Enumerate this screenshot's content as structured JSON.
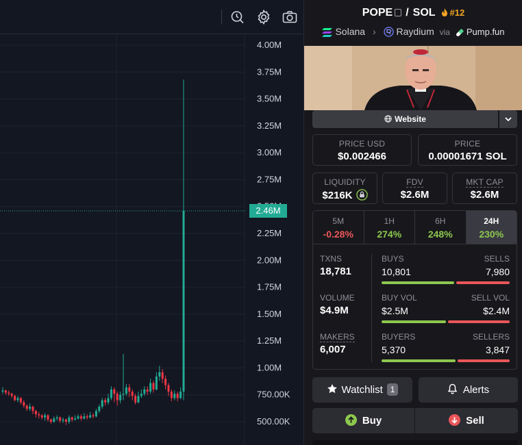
{
  "chart": {
    "y_axis_labels": [
      "4.00M",
      "3.75M",
      "3.50M",
      "3.25M",
      "3.00M",
      "2.75M",
      "2.50M",
      "2.25M",
      "2.00M",
      "1.75M",
      "1.50M",
      "1.25M",
      "1.00M",
      "750.00K",
      "500.00K"
    ],
    "y_axis_values": [
      4000000,
      3750000,
      3500000,
      3250000,
      3000000,
      2750000,
      2500000,
      2250000,
      2000000,
      1750000,
      1500000,
      1250000,
      1000000,
      750000,
      500000
    ],
    "current_price_label": "2.46M",
    "current_price_value": 2460000,
    "up_color": "#22ab94",
    "down_color": "#f23645",
    "candles": [
      [
        780000,
        790000,
        820000,
        760000
      ],
      [
        790000,
        770000,
        800000,
        750000
      ],
      [
        770000,
        760000,
        790000,
        740000
      ],
      [
        760000,
        740000,
        770000,
        720000
      ],
      [
        740000,
        700000,
        750000,
        690000
      ],
      [
        700000,
        720000,
        740000,
        680000
      ],
      [
        720000,
        680000,
        730000,
        660000
      ],
      [
        680000,
        650000,
        700000,
        630000
      ],
      [
        650000,
        620000,
        660000,
        600000
      ],
      [
        620000,
        640000,
        670000,
        600000
      ],
      [
        640000,
        600000,
        650000,
        570000
      ],
      [
        600000,
        570000,
        610000,
        540000
      ],
      [
        570000,
        560000,
        590000,
        530000
      ],
      [
        560000,
        540000,
        570000,
        520000
      ],
      [
        540000,
        560000,
        580000,
        510000
      ],
      [
        560000,
        520000,
        570000,
        500000
      ],
      [
        520000,
        500000,
        530000,
        480000
      ],
      [
        500000,
        530000,
        550000,
        490000
      ],
      [
        530000,
        540000,
        560000,
        510000
      ],
      [
        540000,
        510000,
        550000,
        490000
      ],
      [
        510000,
        520000,
        540000,
        490000
      ],
      [
        520000,
        500000,
        530000,
        470000
      ],
      [
        500000,
        540000,
        560000,
        480000
      ],
      [
        540000,
        520000,
        550000,
        500000
      ],
      [
        520000,
        530000,
        560000,
        510000
      ],
      [
        530000,
        550000,
        570000,
        520000
      ],
      [
        550000,
        530000,
        570000,
        510000
      ],
      [
        530000,
        550000,
        580000,
        520000
      ],
      [
        550000,
        540000,
        570000,
        520000
      ],
      [
        540000,
        560000,
        590000,
        530000
      ],
      [
        560000,
        550000,
        580000,
        530000
      ],
      [
        550000,
        600000,
        620000,
        540000
      ],
      [
        600000,
        640000,
        660000,
        580000
      ],
      [
        640000,
        700000,
        720000,
        620000
      ],
      [
        700000,
        680000,
        720000,
        650000
      ],
      [
        680000,
        720000,
        760000,
        660000
      ],
      [
        720000,
        800000,
        830000,
        700000
      ],
      [
        800000,
        760000,
        820000,
        680000
      ],
      [
        760000,
        700000,
        780000,
        650000
      ],
      [
        700000,
        750000,
        780000,
        670000
      ],
      [
        750000,
        760000,
        1130000,
        700000
      ],
      [
        760000,
        820000,
        850000,
        740000
      ],
      [
        820000,
        780000,
        850000,
        730000
      ],
      [
        780000,
        740000,
        800000,
        700000
      ],
      [
        740000,
        680000,
        760000,
        660000
      ],
      [
        680000,
        740000,
        780000,
        670000
      ],
      [
        740000,
        760000,
        800000,
        720000
      ],
      [
        760000,
        800000,
        830000,
        740000
      ],
      [
        800000,
        780000,
        830000,
        750000
      ],
      [
        780000,
        860000,
        900000,
        760000
      ],
      [
        860000,
        800000,
        880000,
        770000
      ],
      [
        800000,
        920000,
        960000,
        790000
      ],
      [
        920000,
        960000,
        1020000,
        880000
      ],
      [
        960000,
        900000,
        990000,
        860000
      ],
      [
        900000,
        840000,
        930000,
        800000
      ],
      [
        840000,
        780000,
        860000,
        740000
      ],
      [
        780000,
        720000,
        800000,
        690000
      ],
      [
        720000,
        760000,
        790000,
        700000
      ],
      [
        760000,
        720000,
        780000,
        690000
      ],
      [
        720000,
        780000,
        820000,
        710000
      ],
      [
        780000,
        2460000,
        3680000,
        700000
      ]
    ]
  },
  "toolbar": {
    "indicator_icon": "clock-search-icon",
    "settings_icon": "gear-icon",
    "screenshot_icon": "camera-icon"
  },
  "pair": {
    "base": "POPE",
    "sep": "/",
    "quote": "SOL",
    "rank": "#12",
    "chain": "Solana",
    "dex": "Raydium",
    "via": "via",
    "launchpad": "Pump.fun"
  },
  "website_label": "Website",
  "price_usd": {
    "label": "PRICE USD",
    "value": "$0.002466"
  },
  "price_native": {
    "label": "PRICE",
    "value": "0.00001671 SOL"
  },
  "liquidity": {
    "label": "LIQUIDITY",
    "value": "$216K"
  },
  "fdv": {
    "label": "FDV",
    "value": "$2.6M"
  },
  "mkt_cap": {
    "label": "MKT CAP",
    "value": "$2.6M"
  },
  "timeframes": [
    {
      "label": "5M",
      "value": "-0.28%",
      "color": "#ea5659"
    },
    {
      "label": "1H",
      "value": "274%",
      "color": "#8dc84f"
    },
    {
      "label": "6H",
      "value": "248%",
      "color": "#8dc84f"
    },
    {
      "label": "24H",
      "value": "230%",
      "color": "#8dc84f"
    }
  ],
  "stats": {
    "txns": {
      "label": "TXNS",
      "value": "18,781"
    },
    "volume": {
      "label": "VOLUME",
      "value": "$4.9M"
    },
    "makers": {
      "label": "MAKERS",
      "value": "6,007"
    },
    "buys": {
      "label": "BUYS",
      "value": "10,801",
      "ratio": 0.575
    },
    "sells": {
      "label": "SELLS",
      "value": "7,980"
    },
    "buy_vol": {
      "label": "BUY VOL",
      "value": "$2.5M",
      "ratio": 0.51
    },
    "sell_vol": {
      "label": "SELL VOL",
      "value": "$2.4M"
    },
    "buyers": {
      "label": "BUYERS",
      "value": "5,370",
      "ratio": 0.583
    },
    "sellers": {
      "label": "SELLERS",
      "value": "3,847"
    }
  },
  "watchlist": {
    "label": "Watchlist",
    "count": "1"
  },
  "alerts": {
    "label": "Alerts"
  },
  "buy": {
    "label": "Buy"
  },
  "sell": {
    "label": "Sell"
  }
}
